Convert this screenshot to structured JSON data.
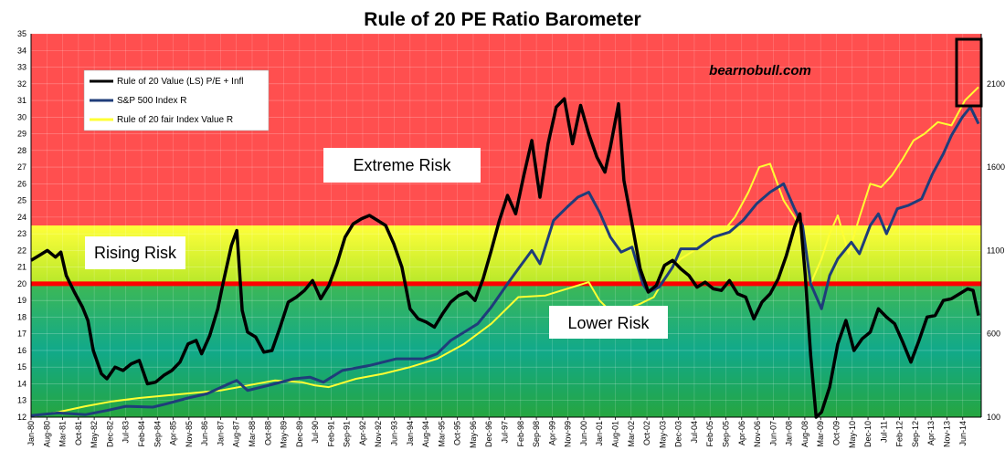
{
  "chart_data": {
    "type": "line",
    "title": "Rule of 20 PE Ratio Barometer",
    "watermark": "bearnobull.com",
    "y_left": {
      "min": 12,
      "max": 35,
      "ticks": [
        12,
        13,
        14,
        15,
        16,
        17,
        18,
        19,
        20,
        21,
        22,
        23,
        24,
        25,
        26,
        27,
        28,
        29,
        30,
        31,
        32,
        33,
        34,
        35
      ]
    },
    "y_right": {
      "min": 100,
      "max": 2400,
      "ticks": [
        100,
        600,
        1100,
        1600,
        2100
      ]
    },
    "x_range": [
      1980.0,
      2015.1
    ],
    "x_tick_labels": [
      "Jan-80",
      "Aug-80",
      "Mar-81",
      "Oct-81",
      "May-82",
      "Dec-82",
      "Jul-83",
      "Feb-84",
      "Sep-84",
      "Apr-85",
      "Nov-85",
      "Jun-86",
      "Jan-87",
      "Aug-87",
      "Mar-88",
      "Oct-88",
      "May-89",
      "Dec-89",
      "Jul-90",
      "Feb-91",
      "Sep-91",
      "Apr-92",
      "Nov-92",
      "Jun-93",
      "Jan-94",
      "Aug-94",
      "Mar-95",
      "Oct-95",
      "May-96",
      "Dec-96",
      "Jul-97",
      "Feb-98",
      "Sep-98",
      "Apr-99",
      "Nov-99",
      "Jun-00",
      "Jan-01",
      "Aug-01",
      "Mar-02",
      "Oct-02",
      "May-03",
      "Dec-03",
      "Jul-04",
      "Feb-05",
      "Sep-05",
      "Apr-06",
      "Nov-06",
      "Jun-07",
      "Jan-08",
      "Aug-08",
      "Mar-09",
      "Oct-09",
      "May-10",
      "Dec-10",
      "Jul-11",
      "Feb-12",
      "Sep-12",
      "Apr-13",
      "Nov-13",
      "Jun-14"
    ],
    "x_tick_positions": [
      1980.0,
      1980.583,
      1981.167,
      1981.75,
      1982.333,
      1982.917,
      1983.5,
      1984.083,
      1984.667,
      1985.25,
      1985.833,
      1986.417,
      1987.0,
      1987.583,
      1988.167,
      1988.75,
      1989.333,
      1989.917,
      1990.5,
      1991.083,
      1991.667,
      1992.25,
      1992.833,
      1993.417,
      1994.0,
      1994.583,
      1995.167,
      1995.75,
      1996.333,
      1996.917,
      1997.5,
      1998.083,
      1998.667,
      1999.25,
      1999.833,
      2000.417,
      2001.0,
      2001.583,
      2002.167,
      2002.75,
      2003.333,
      2003.917,
      2004.5,
      2005.083,
      2005.667,
      2006.25,
      2006.833,
      2007.417,
      2008.0,
      2008.583,
      2009.167,
      2009.75,
      2010.333,
      2010.917,
      2011.5,
      2012.083,
      2012.667,
      2013.25,
      2013.833,
      2014.417
    ],
    "zones": [
      {
        "name": "extreme",
        "from": 23.5,
        "to": 35,
        "color": "#ff4d4d"
      },
      {
        "name": "rising",
        "from": 20,
        "to": 23.5,
        "color": "#e8ff2a"
      },
      {
        "name": "lower",
        "from": 12,
        "to": 20,
        "color": "#1aae70"
      }
    ],
    "zone_labels": {
      "extreme": "Extreme Risk",
      "rising": "Rising Risk",
      "lower": "Lower Risk"
    },
    "reference_line": {
      "y": 20,
      "color": "#ff0000"
    },
    "legend": {
      "placement": "top-left"
    },
    "series": [
      {
        "name": "Rule of 20 Value (LS) P/E + Infl",
        "axis": "left",
        "color": "#000000",
        "x": [
          1980.0,
          1980.3,
          1980.6,
          1980.9,
          1981.1,
          1981.3,
          1981.6,
          1981.9,
          1982.1,
          1982.3,
          1982.6,
          1982.8,
          1983.1,
          1983.4,
          1983.7,
          1984.0,
          1984.3,
          1984.6,
          1984.9,
          1985.2,
          1985.5,
          1985.8,
          1986.1,
          1986.3,
          1986.6,
          1986.9,
          1987.1,
          1987.4,
          1987.6,
          1987.8,
          1988.0,
          1988.3,
          1988.6,
          1988.9,
          1989.2,
          1989.5,
          1989.8,
          1990.1,
          1990.4,
          1990.7,
          1991.0,
          1991.3,
          1991.6,
          1991.9,
          1992.2,
          1992.5,
          1992.8,
          1993.1,
          1993.4,
          1993.7,
          1994.0,
          1994.3,
          1994.6,
          1994.9,
          1995.2,
          1995.5,
          1995.8,
          1996.1,
          1996.4,
          1996.7,
          1997.0,
          1997.3,
          1997.6,
          1997.9,
          1998.2,
          1998.5,
          1998.8,
          1999.1,
          1999.4,
          1999.7,
          2000.0,
          2000.3,
          2000.6,
          2000.9,
          2001.2,
          2001.4,
          2001.7,
          2001.9,
          2002.2,
          2002.5,
          2002.8,
          2003.1,
          2003.4,
          2003.7,
          2004.0,
          2004.3,
          2004.6,
          2004.9,
          2005.2,
          2005.5,
          2005.8,
          2006.1,
          2006.4,
          2006.7,
          2007.0,
          2007.3,
          2007.6,
          2007.9,
          2008.2,
          2008.4,
          2008.6,
          2008.8,
          2009.0,
          2009.2,
          2009.5,
          2009.8,
          2010.1,
          2010.4,
          2010.7,
          2011.0,
          2011.3,
          2011.6,
          2011.9,
          2012.2,
          2012.5,
          2012.8,
          2013.1,
          2013.4,
          2013.7,
          2014.0,
          2014.3,
          2014.6,
          2014.8,
          2015.0
        ],
        "values": [
          21.4,
          21.7,
          22.0,
          21.6,
          21.9,
          20.5,
          19.5,
          18.6,
          17.8,
          16.0,
          14.6,
          14.3,
          15.0,
          14.8,
          15.2,
          15.4,
          14.0,
          14.1,
          14.5,
          14.8,
          15.3,
          16.4,
          16.6,
          15.8,
          16.9,
          18.5,
          20.1,
          22.3,
          23.2,
          18.4,
          17.1,
          16.8,
          15.9,
          16.0,
          17.4,
          18.9,
          19.2,
          19.6,
          20.2,
          19.1,
          19.9,
          21.2,
          22.8,
          23.6,
          23.9,
          24.1,
          23.8,
          23.5,
          22.4,
          21.0,
          18.5,
          17.9,
          17.7,
          17.4,
          18.2,
          18.9,
          19.3,
          19.5,
          19.0,
          20.3,
          22.0,
          23.8,
          25.3,
          24.2,
          26.5,
          28.6,
          25.2,
          28.4,
          30.6,
          31.1,
          28.4,
          30.7,
          29.0,
          27.6,
          26.7,
          28.2,
          30.8,
          26.2,
          23.6,
          20.9,
          19.5,
          19.9,
          21.1,
          21.4,
          20.9,
          20.5,
          19.8,
          20.1,
          19.7,
          19.6,
          20.2,
          19.4,
          19.2,
          17.9,
          18.9,
          19.4,
          20.3,
          21.7,
          23.4,
          24.2,
          20.5,
          15.7,
          12.0,
          12.3,
          13.8,
          16.4,
          17.8,
          16.0,
          16.7,
          17.1,
          18.5,
          18.0,
          17.6,
          16.5,
          15.3,
          16.6,
          18.0,
          18.1,
          19.0,
          19.1,
          19.4,
          19.7,
          19.6,
          18.1
        ]
      },
      {
        "name": "S&P 500 Index R",
        "axis": "right",
        "color": "#1f3d7a",
        "x": [
          1980.0,
          1981.0,
          1982.0,
          1982.8,
          1983.5,
          1984.5,
          1985.0,
          1985.8,
          1986.5,
          1987.3,
          1987.6,
          1988.0,
          1989.0,
          1989.7,
          1990.3,
          1990.8,
          1991.5,
          1992.5,
          1993.5,
          1994.5,
          1995.0,
          1995.5,
          1996.0,
          1996.5,
          1997.0,
          1997.6,
          1998.0,
          1998.5,
          1998.8,
          1999.3,
          1999.8,
          2000.2,
          2000.6,
          2001.0,
          2001.4,
          2001.8,
          2002.2,
          2002.6,
          2002.8,
          2003.2,
          2003.7,
          2004.0,
          2004.6,
          2005.2,
          2005.8,
          2006.3,
          2006.8,
          2007.3,
          2007.8,
          2008.2,
          2008.5,
          2008.8,
          2009.2,
          2009.5,
          2009.8,
          2010.3,
          2010.6,
          2011.0,
          2011.3,
          2011.6,
          2012.0,
          2012.4,
          2012.9,
          2013.3,
          2013.7,
          2014.0,
          2014.4,
          2014.7,
          2015.0
        ],
        "values": [
          110,
          125,
          115,
          140,
          165,
          160,
          180,
          215,
          240,
          300,
          320,
          260,
          300,
          330,
          340,
          310,
          380,
          410,
          450,
          450,
          480,
          560,
          610,
          660,
          760,
          900,
          990,
          1100,
          1020,
          1280,
          1360,
          1420,
          1450,
          1330,
          1180,
          1090,
          1120,
          900,
          850,
          880,
          1000,
          1110,
          1110,
          1180,
          1210,
          1280,
          1380,
          1450,
          1500,
          1350,
          1250,
          900,
          750,
          950,
          1050,
          1150,
          1080,
          1250,
          1320,
          1200,
          1350,
          1370,
          1410,
          1560,
          1680,
          1790,
          1900,
          1960,
          1860
        ]
      },
      {
        "name": "Rule of 20 fair Index Value R",
        "axis": "right",
        "color": "#ffff33",
        "x": [
          1980.0,
          1981.0,
          1982.0,
          1983.0,
          1984.0,
          1985.0,
          1986.0,
          1987.0,
          1988.0,
          1989.0,
          1990.0,
          1990.5,
          1991.0,
          1992.0,
          1993.0,
          1994.0,
          1995.0,
          1996.0,
          1997.0,
          1998.0,
          1999.0,
          2000.0,
          2000.6,
          2001.0,
          2001.5,
          2002.0,
          2002.5,
          2003.0,
          2003.5,
          2004.0,
          2004.5,
          2005.0,
          2005.5,
          2006.0,
          2006.5,
          2006.9,
          2007.3,
          2007.8,
          2008.2,
          2008.5,
          2008.8,
          2009.2,
          2009.5,
          2009.8,
          2010.2,
          2010.6,
          2011.0,
          2011.4,
          2011.8,
          2012.2,
          2012.6,
          2013.0,
          2013.5,
          2014.0,
          2014.5,
          2015.0
        ],
        "values": [
          105,
          130,
          165,
          195,
          215,
          230,
          245,
          260,
          290,
          320,
          310,
          290,
          280,
          330,
          360,
          400,
          450,
          540,
          660,
          820,
          830,
          880,
          910,
          800,
          720,
          750,
          780,
          820,
          960,
          1050,
          1100,
          1150,
          1200,
          1300,
          1450,
          1600,
          1620,
          1400,
          1300,
          1200,
          900,
          1050,
          1200,
          1310,
          1080,
          1300,
          1500,
          1480,
          1550,
          1650,
          1760,
          1800,
          1870,
          1850,
          2000,
          2080
        ]
      }
    ]
  }
}
